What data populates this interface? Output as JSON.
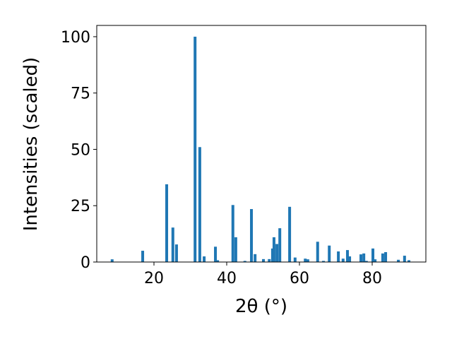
{
  "chart_data": {
    "type": "bar",
    "xlabel": "2θ (°)",
    "ylabel": "Intensities (scaled)",
    "color": "#1f77b4",
    "x": [
      8.5,
      16.9,
      23.5,
      25.2,
      26.2,
      31.3,
      32.6,
      33.8,
      36.9,
      37.5,
      41.7,
      42.5,
      45.0,
      46.8,
      47.8,
      50.1,
      51.7,
      52.6,
      53.0,
      53.8,
      54.6,
      57.3,
      58.8,
      61.6,
      62.3,
      65.0,
      66.6,
      68.2,
      70.7,
      72.0,
      73.2,
      73.8,
      76.9,
      77.7,
      78.4,
      80.2,
      80.8,
      82.9,
      83.7,
      87.2,
      88.9,
      90.1
    ],
    "values": [
      1.2,
      5,
      34.5,
      15.3,
      7.8,
      100,
      51,
      2.5,
      6.8,
      0.8,
      25.3,
      11,
      0.5,
      23.5,
      3.5,
      1.3,
      1.3,
      6,
      11,
      8,
      15,
      24.5,
      2,
      1.5,
      1.2,
      9,
      0.5,
      7.3,
      4.7,
      1.5,
      5.3,
      2.5,
      3.4,
      3.8,
      0.5,
      6,
      1.2,
      3.8,
      4.4,
      1,
      2.8,
      0.8
    ],
    "xlim": [
      4.27,
      94.76
    ],
    "ylim": [
      0,
      105
    ],
    "xticks": [
      20,
      40,
      60,
      80
    ],
    "yticks": [
      0,
      25,
      50,
      75,
      100
    ]
  }
}
